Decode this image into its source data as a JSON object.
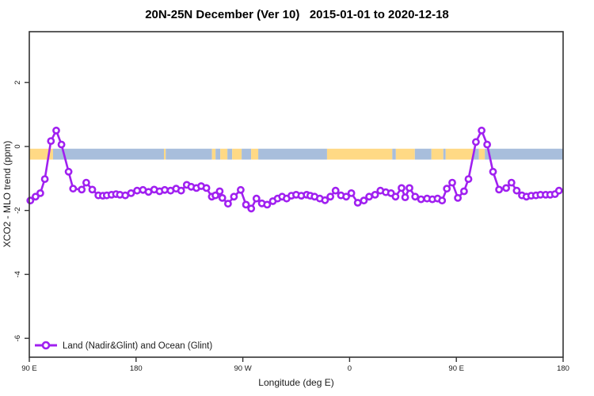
{
  "title": "20N-25N December (Ver 10)   2015-01-01 to 2020-12-18",
  "legend": {
    "label": "Land (Nadir&Glint) and Ocean (Glint)"
  },
  "colors": {
    "series": "#A020F0",
    "marker_fill": "#ffffff",
    "land": "#FFD985",
    "ocean": "#A8BEDC",
    "axis": "#333333",
    "background": "#ffffff"
  },
  "map_strip": {
    "top_ppm": -0.07,
    "bottom_ppm": -0.41,
    "segments": [
      {
        "from": 90,
        "to": 110,
        "type": "land"
      },
      {
        "from": 110,
        "to": 203.5,
        "type": "ocean"
      },
      {
        "from": 203.5,
        "to": 205,
        "type": "land"
      },
      {
        "from": 205,
        "to": 244,
        "type": "ocean"
      },
      {
        "from": 244,
        "to": 247,
        "type": "land"
      },
      {
        "from": 247,
        "to": 251,
        "type": "ocean"
      },
      {
        "from": 251,
        "to": 257,
        "type": "land"
      },
      {
        "from": 257,
        "to": 261,
        "type": "ocean"
      },
      {
        "from": 261,
        "to": 269,
        "type": "land"
      },
      {
        "from": 269,
        "to": 277,
        "type": "ocean"
      },
      {
        "from": 277,
        "to": 283,
        "type": "land"
      },
      {
        "from": 283,
        "to": 341,
        "type": "ocean"
      },
      {
        "from": 341,
        "to": 396,
        "type": "land"
      },
      {
        "from": 396,
        "to": 399,
        "type": "ocean"
      },
      {
        "from": 399,
        "to": 415,
        "type": "land"
      },
      {
        "from": 415,
        "to": 429,
        "type": "ocean"
      },
      {
        "from": 429,
        "to": 439,
        "type": "land"
      },
      {
        "from": 439,
        "to": 441,
        "type": "ocean"
      },
      {
        "from": 441,
        "to": 464,
        "type": "land"
      },
      {
        "from": 464,
        "to": 469,
        "type": "ocean"
      },
      {
        "from": 469,
        "to": 474,
        "type": "land"
      },
      {
        "from": 474,
        "to": 540,
        "type": "ocean"
      }
    ]
  },
  "chart_data": {
    "type": "line",
    "title": "20N-25N December (Ver 10)   2015-01-01 to 2020-12-18",
    "xlabel": "Longitude (deg E)",
    "ylabel": "XCO2 - MLO trend (ppm)",
    "xlim": [
      90,
      540
    ],
    "ylim": [
      -6.59,
      3.59
    ],
    "grid": false,
    "legend_position": "bottom-left-inside",
    "x_ticks": [
      {
        "value": 90,
        "label": "90 E"
      },
      {
        "value": 180,
        "label": "180"
      },
      {
        "value": 270,
        "label": "90 W"
      },
      {
        "value": 360,
        "label": "0"
      },
      {
        "value": 450,
        "label": "90 E"
      },
      {
        "value": 540,
        "label": "180"
      }
    ],
    "y_ticks": [
      {
        "value": 2,
        "label": "2"
      },
      {
        "value": 0,
        "label": "0"
      },
      {
        "value": -2,
        "label": "-2"
      },
      {
        "value": -4,
        "label": "-4"
      },
      {
        "value": -6,
        "label": "-6"
      }
    ],
    "series": [
      {
        "name": "Land (Nadir&Glint) and Ocean (Glint)",
        "marker": "open-circle",
        "color": "#A020F0",
        "points": [
          [
            90.9,
            -1.69
          ],
          [
            95.3,
            -1.57
          ],
          [
            99.3,
            -1.46
          ],
          [
            103.1,
            -1.02
          ],
          [
            108.2,
            0.17
          ],
          [
            112.7,
            0.5
          ],
          [
            117.1,
            0.06
          ],
          [
            123.1,
            -0.79
          ],
          [
            126.9,
            -1.32
          ],
          [
            134.2,
            -1.35
          ],
          [
            138.0,
            -1.13
          ],
          [
            143.1,
            -1.35
          ],
          [
            148.2,
            -1.53
          ],
          [
            152.0,
            -1.54
          ],
          [
            155.3,
            -1.53
          ],
          [
            159.3,
            -1.51
          ],
          [
            163.1,
            -1.49
          ],
          [
            166.4,
            -1.51
          ],
          [
            170.9,
            -1.53
          ],
          [
            175.8,
            -1.46
          ],
          [
            180.9,
            -1.38
          ],
          [
            185.8,
            -1.36
          ],
          [
            190.5,
            -1.42
          ],
          [
            195.3,
            -1.35
          ],
          [
            199.8,
            -1.4
          ],
          [
            204.2,
            -1.36
          ],
          [
            209.1,
            -1.38
          ],
          [
            213.8,
            -1.32
          ],
          [
            218.0,
            -1.38
          ],
          [
            222.7,
            -1.2
          ],
          [
            226.5,
            -1.26
          ],
          [
            230.9,
            -1.3
          ],
          [
            234.9,
            -1.24
          ],
          [
            239.3,
            -1.3
          ],
          [
            243.8,
            -1.57
          ],
          [
            246.9,
            -1.53
          ],
          [
            250.5,
            -1.4
          ],
          [
            252.7,
            -1.61
          ],
          [
            257.5,
            -1.79
          ],
          [
            262.5,
            -1.57
          ],
          [
            268.2,
            -1.36
          ],
          [
            272.7,
            -1.82
          ],
          [
            277.1,
            -1.94
          ],
          [
            281.5,
            -1.63
          ],
          [
            286.0,
            -1.78
          ],
          [
            290.5,
            -1.82
          ],
          [
            295.3,
            -1.71
          ],
          [
            299.3,
            -1.63
          ],
          [
            303.1,
            -1.57
          ],
          [
            306.9,
            -1.63
          ],
          [
            310.9,
            -1.54
          ],
          [
            314.9,
            -1.51
          ],
          [
            319.3,
            -1.54
          ],
          [
            323.8,
            -1.51
          ],
          [
            326.9,
            -1.54
          ],
          [
            330.5,
            -1.57
          ],
          [
            334.9,
            -1.63
          ],
          [
            339.3,
            -1.68
          ],
          [
            343.8,
            -1.57
          ],
          [
            348.2,
            -1.38
          ],
          [
            352.7,
            -1.53
          ],
          [
            357.1,
            -1.57
          ],
          [
            361.5,
            -1.46
          ],
          [
            366.9,
            -1.76
          ],
          [
            372.0,
            -1.69
          ],
          [
            376.5,
            -1.57
          ],
          [
            381.5,
            -1.51
          ],
          [
            386.0,
            -1.38
          ],
          [
            390.5,
            -1.43
          ],
          [
            394.9,
            -1.46
          ],
          [
            398.7,
            -1.57
          ],
          [
            403.8,
            -1.3
          ],
          [
            406.9,
            -1.59
          ],
          [
            410.5,
            -1.3
          ],
          [
            415.3,
            -1.57
          ],
          [
            420.2,
            -1.65
          ],
          [
            425.3,
            -1.63
          ],
          [
            429.8,
            -1.65
          ],
          [
            434.2,
            -1.63
          ],
          [
            438.0,
            -1.69
          ],
          [
            442.0,
            -1.32
          ],
          [
            446.5,
            -1.13
          ],
          [
            451.3,
            -1.61
          ],
          [
            456.5,
            -1.4
          ],
          [
            460.2,
            -1.02
          ],
          [
            466.5,
            0.14
          ],
          [
            471.3,
            0.5
          ],
          [
            476.0,
            0.06
          ],
          [
            480.9,
            -0.79
          ],
          [
            486.0,
            -1.35
          ],
          [
            492.0,
            -1.3
          ],
          [
            496.5,
            -1.13
          ],
          [
            500.9,
            -1.38
          ],
          [
            505.3,
            -1.53
          ],
          [
            509.1,
            -1.57
          ],
          [
            513.1,
            -1.54
          ],
          [
            517.1,
            -1.53
          ],
          [
            520.9,
            -1.51
          ],
          [
            525.3,
            -1.51
          ],
          [
            529.1,
            -1.51
          ],
          [
            533.1,
            -1.49
          ],
          [
            536.5,
            -1.38
          ]
        ]
      }
    ]
  }
}
